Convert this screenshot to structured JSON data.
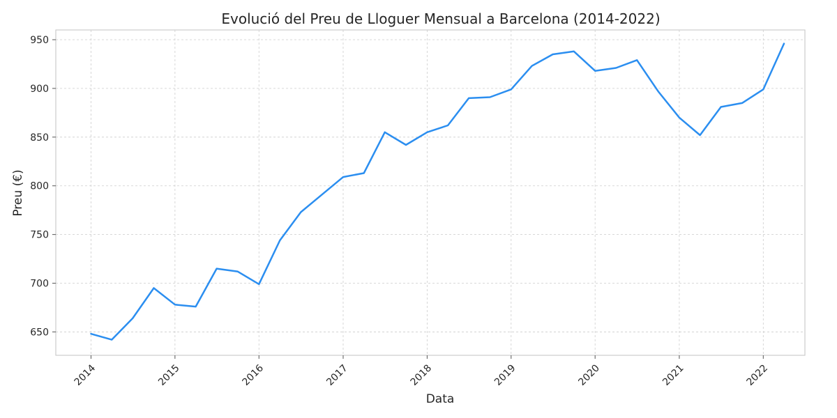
{
  "chart_data": {
    "type": "line",
    "title": "Evolució del Preu de Lloguer Mensual a Barcelona (2014-2022)",
    "xlabel": "Data",
    "ylabel": "Preu (€)",
    "ylim": [
      626,
      960
    ],
    "xlim": [
      "2013-08-01",
      "2022-07-01"
    ],
    "yticks": [
      650,
      700,
      750,
      800,
      850,
      900,
      950
    ],
    "xticks": [
      "2014",
      "2015",
      "2016",
      "2017",
      "2018",
      "2019",
      "2020",
      "2021",
      "2022"
    ],
    "grid": true,
    "colors": {
      "line": "#2b8ef0"
    },
    "series": [
      {
        "x": [
          "2014-01-01",
          "2014-04-01",
          "2014-07-01",
          "2014-10-01",
          "2015-01-01",
          "2015-04-01",
          "2015-07-01",
          "2015-10-01",
          "2016-01-01",
          "2016-04-01",
          "2016-07-01",
          "2016-10-01",
          "2017-01-01",
          "2017-04-01",
          "2017-07-01",
          "2017-10-01",
          "2018-01-01",
          "2018-04-01",
          "2018-07-01",
          "2018-10-01",
          "2019-01-01",
          "2019-04-01",
          "2019-07-01",
          "2019-10-01",
          "2020-01-01",
          "2020-04-01",
          "2020-07-01",
          "2020-10-01",
          "2021-01-01",
          "2021-04-01",
          "2021-07-01",
          "2021-10-01",
          "2022-01-01",
          "2022-04-01"
        ],
        "values": [
          648,
          642,
          664,
          695,
          678,
          676,
          715,
          712,
          699,
          744,
          773,
          791,
          809,
          813,
          855,
          842,
          855,
          862,
          890,
          891,
          899,
          923,
          935,
          938,
          918,
          921,
          929,
          897,
          870,
          852,
          881,
          885,
          899,
          946
        ]
      }
    ]
  }
}
